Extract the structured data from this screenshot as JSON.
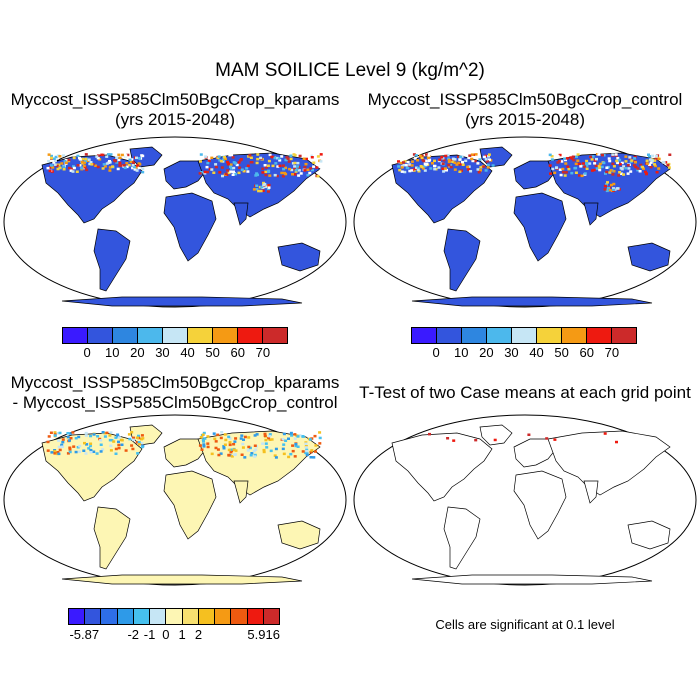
{
  "title": "MAM SOILICE Level 9 (kg/m^2)",
  "panels": [
    {
      "title": "Myccost_ISSP585Clm50BgcCrop_kparams",
      "subtitle": "(yrs 2015-2048)"
    },
    {
      "title": "Myccost_ISSP585Clm50BgcCrop_control",
      "subtitle": "(yrs 2015-2048)"
    },
    {
      "title": "Myccost_ISSP585Clm50BgcCrop_kparams",
      "subtitle": "- Myccost_ISSP585Clm50BgcCrop_control"
    },
    {
      "title": "T-Test of two Case means at each grid point",
      "note": "Cells are significant at 0.1 level"
    }
  ],
  "colorbar_main": {
    "colors": [
      "#3a1aff",
      "#3355dd",
      "#2e86e0",
      "#4cb8ec",
      "#c6e6f5",
      "#f5d23a",
      "#f59a14",
      "#ee1a10",
      "#cc2a2a"
    ],
    "labels": [
      "0",
      "10",
      "20",
      "30",
      "40",
      "50",
      "60",
      "70"
    ]
  },
  "colorbar_diff": {
    "colors": [
      "#3a1aff",
      "#3355dd",
      "#2e6ee8",
      "#2e9ae8",
      "#46c0ee",
      "#c6e6f5",
      "#fdf6b4",
      "#f7e070",
      "#f5c020",
      "#f59a14",
      "#ee5a10",
      "#ee1a10",
      "#cc2a2a"
    ],
    "labels": [
      "-5.87",
      "-2",
      "-1",
      "0",
      "1",
      "2",
      "5.916"
    ]
  },
  "map_colors": {
    "land_main": "#3355dd",
    "land_diff": "#fdf6b4",
    "outline": "#000000"
  }
}
